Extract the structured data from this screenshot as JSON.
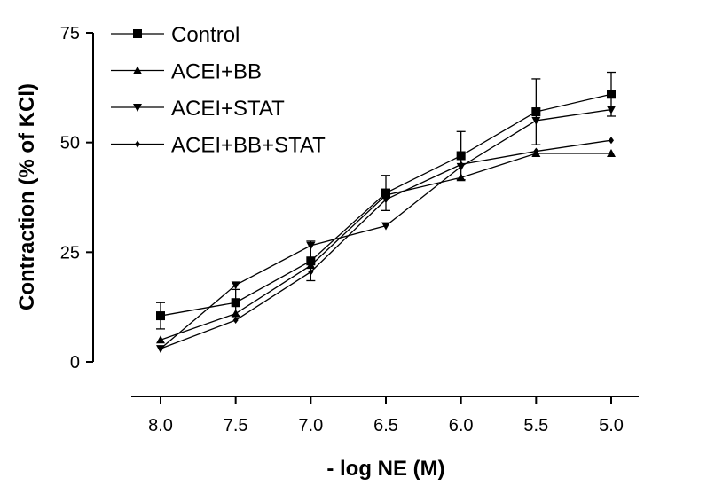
{
  "chart_data": {
    "type": "line",
    "title": "",
    "xlabel": "- log NE (M)",
    "ylabel": "Contraction (% of KCl)",
    "x": [
      8.0,
      7.5,
      7.0,
      6.5,
      6.0,
      5.5,
      5.0
    ],
    "x_tick_labels": [
      "8.0",
      "7.5",
      "7.0",
      "6.5",
      "6.0",
      "5.5",
      "5.0"
    ],
    "x_reversed": true,
    "y_ticks": [
      0,
      25,
      50,
      75
    ],
    "y_tick_labels": [
      "0",
      "25",
      "50",
      "75"
    ],
    "ylim": [
      0,
      75
    ],
    "legend_position": "top-left",
    "series": [
      {
        "name": "Control",
        "marker": "square",
        "values": [
          10.5,
          13.5,
          23,
          38.5,
          47,
          57,
          61
        ],
        "errors": [
          3,
          3,
          4.5,
          4,
          5.5,
          7.5,
          5
        ]
      },
      {
        "name": "ACEI+BB",
        "marker": "triangle-up",
        "values": [
          5,
          11,
          22,
          38,
          42,
          47.5,
          47.5
        ]
      },
      {
        "name": "ACEI+STAT",
        "marker": "triangle-down",
        "values": [
          3,
          17.5,
          26.5,
          31,
          44.5,
          55,
          57.5
        ]
      },
      {
        "name": "ACEI+BB+STAT",
        "marker": "diamond",
        "values": [
          3,
          9.5,
          20.5,
          37,
          45,
          48,
          50.5
        ]
      }
    ]
  }
}
